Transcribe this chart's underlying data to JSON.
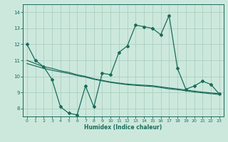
{
  "xlabel": "Humidex (Indice chaleur)",
  "bg_color": "#cce8dd",
  "grid_color": "#aacfbf",
  "line_color": "#1a6b5a",
  "xlim": [
    -0.5,
    23.5
  ],
  "ylim": [
    7.5,
    14.5
  ],
  "yticks": [
    8,
    9,
    10,
    11,
    12,
    13,
    14
  ],
  "xticks": [
    0,
    1,
    2,
    3,
    4,
    5,
    6,
    7,
    8,
    9,
    10,
    11,
    12,
    13,
    14,
    15,
    16,
    17,
    18,
    19,
    20,
    21,
    22,
    23
  ],
  "line1_x": [
    0,
    1,
    2,
    3,
    4,
    5,
    6,
    7,
    8,
    9,
    10,
    11,
    12,
    13,
    14,
    15,
    16,
    17,
    18,
    19,
    20,
    21,
    22,
    23
  ],
  "line1_y": [
    12.0,
    11.0,
    10.6,
    9.8,
    8.1,
    7.7,
    7.6,
    9.4,
    8.1,
    10.2,
    10.1,
    11.5,
    11.9,
    13.2,
    13.1,
    13.0,
    12.6,
    13.8,
    10.5,
    9.2,
    9.4,
    9.7,
    9.5,
    8.9
  ],
  "line2_x": [
    0,
    1,
    2,
    3,
    4,
    5,
    6,
    7,
    8,
    9,
    10,
    11,
    12,
    13,
    14,
    15,
    16,
    17,
    18,
    19,
    20,
    21,
    22,
    23
  ],
  "line2_y": [
    11.0,
    10.8,
    10.6,
    10.5,
    10.35,
    10.25,
    10.1,
    10.0,
    9.85,
    9.75,
    9.65,
    9.58,
    9.52,
    9.48,
    9.45,
    9.42,
    9.35,
    9.28,
    9.22,
    9.15,
    9.08,
    9.02,
    8.97,
    8.92
  ],
  "line3_x": [
    0,
    1,
    2,
    3,
    4,
    5,
    6,
    7,
    8,
    9,
    10,
    11,
    12,
    13,
    14,
    15,
    16,
    17,
    18,
    19,
    20,
    21,
    22,
    23
  ],
  "line3_y": [
    10.8,
    10.65,
    10.5,
    10.38,
    10.28,
    10.18,
    10.05,
    9.95,
    9.82,
    9.72,
    9.62,
    9.55,
    9.48,
    9.44,
    9.4,
    9.37,
    9.3,
    9.22,
    9.17,
    9.1,
    9.03,
    8.97,
    8.92,
    8.87
  ],
  "tick_fontsize": 4.5,
  "xlabel_fontsize": 5.5
}
